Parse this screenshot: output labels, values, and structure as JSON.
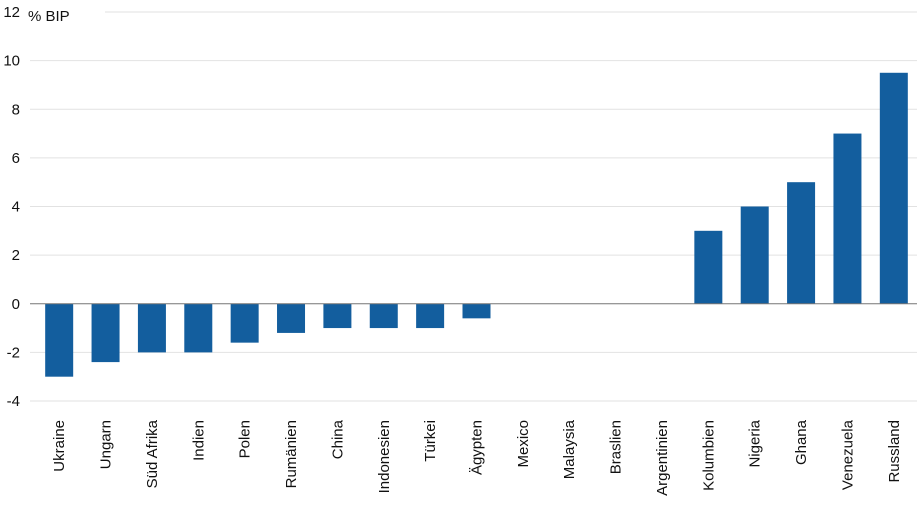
{
  "chart_data": {
    "type": "bar",
    "title": "",
    "ylabel": "% BIP",
    "xlabel": "",
    "ylim": [
      -4,
      12
    ],
    "yticks": [
      -4,
      -2,
      0,
      2,
      4,
      6,
      8,
      10,
      12
    ],
    "grid": true,
    "bar_color": "#135e9e",
    "categories": [
      "Ukraine",
      "Ungarn",
      "Süd Afrika",
      "Indien",
      "Polen",
      "Rumänien",
      "China",
      "Indonesien",
      "Türkei",
      "Ägypten",
      "Mexico",
      "Malaysia",
      "Braslien",
      "Argentinien",
      "Kolumbien",
      "Nigeria",
      "Ghana",
      "Venezuela",
      "Russland"
    ],
    "values": [
      -3.0,
      -2.4,
      -2.0,
      -2.0,
      -1.6,
      -1.2,
      -1.0,
      -1.0,
      -1.0,
      -0.6,
      0,
      0,
      0,
      0,
      3.0,
      4.0,
      5.0,
      7.0,
      9.5
    ]
  }
}
